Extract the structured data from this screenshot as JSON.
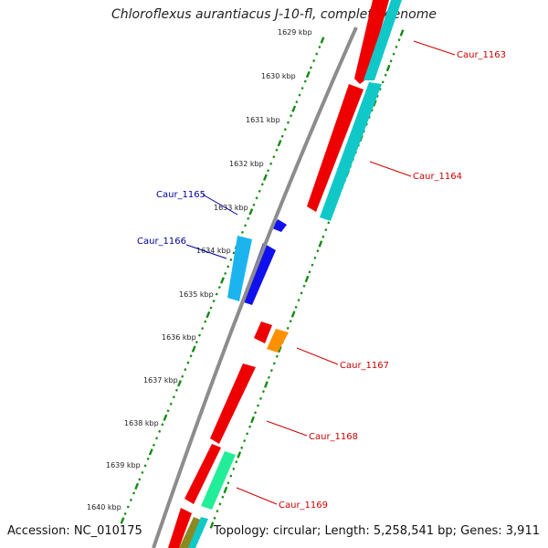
{
  "title": "Chloroflexus aurantiacus J-10-fl, complete genome",
  "accession": "Accession: NC_010175",
  "topology": "Topology: circular; Length: 5,258,541 bp; Genes: 3,911",
  "colors": {
    "backbone": "#8c8c8c",
    "ticks": "#138a13",
    "gene_red": "#ee0000",
    "gene_cyan": "#11c8c8",
    "gene_blue": "#1010ee",
    "gene_lightblue": "#1cb4ee",
    "gene_orange": "#ff9000",
    "gene_green": "#22ee99",
    "gene_olive": "#8a8a20",
    "label_red": "#cc0000",
    "label_blue": "#000099"
  },
  "kbp_labels": [
    "1629 kbp",
    "1630 kbp",
    "1631 kbp",
    "1632 kbp",
    "1633 kbp",
    "1634 kbp",
    "1635 kbp",
    "1636 kbp",
    "1637 kbp",
    "1638 kbp",
    "1639 kbp",
    "1640 kbp"
  ],
  "gene_labels": [
    {
      "text": "Caur_1163",
      "color": "red"
    },
    {
      "text": "Caur_1164",
      "color": "red"
    },
    {
      "text": "Caur_1165",
      "color": "blue"
    },
    {
      "text": "Caur_1166",
      "color": "blue"
    },
    {
      "text": "Caur_1167",
      "color": "red"
    },
    {
      "text": "Caur_1168",
      "color": "red"
    },
    {
      "text": "Caur_1169",
      "color": "red"
    }
  ]
}
